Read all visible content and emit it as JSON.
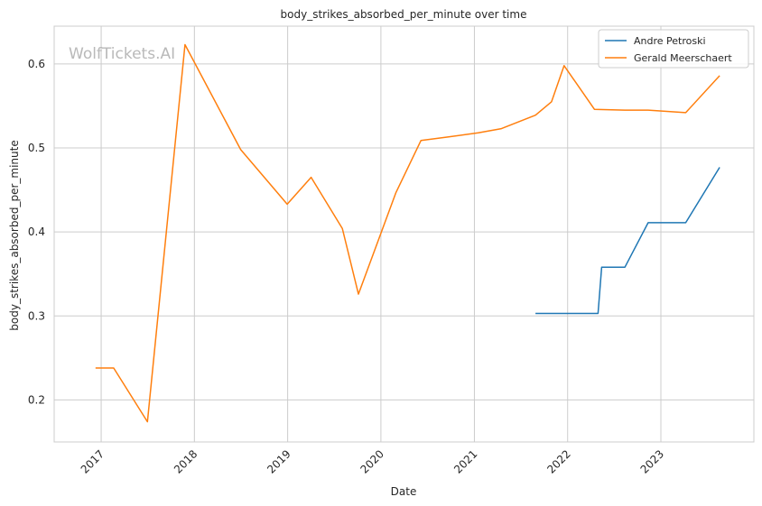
{
  "chart_data": {
    "type": "line",
    "title": "body_strikes_absorbed_per_minute over time",
    "xlabel": "Date",
    "ylabel": "body_strikes_absorbed_per_minute",
    "watermark": "WolfTickets.AI",
    "x_ticks": [
      "2017",
      "2018",
      "2019",
      "2020",
      "2021",
      "2022",
      "2023"
    ],
    "y_ticks": [
      "0.2",
      "0.3",
      "0.4",
      "0.5",
      "0.6"
    ],
    "xlim": [
      "2016-07-01",
      "2023-12-31"
    ],
    "ylim": [
      0.15,
      0.645
    ],
    "grid": true,
    "legend_position": "top-right",
    "series": [
      {
        "name": "Andre Petroski",
        "color": "#1f77b4",
        "points": [
          {
            "x": "2021-08-28",
            "y": 0.303
          },
          {
            "x": "2022-04-30",
            "y": 0.303
          },
          {
            "x": "2022-05-14",
            "y": 0.358
          },
          {
            "x": "2022-08-13",
            "y": 0.358
          },
          {
            "x": "2022-11-12",
            "y": 0.411
          },
          {
            "x": "2023-04-08",
            "y": 0.411
          },
          {
            "x": "2023-08-19",
            "y": 0.477
          }
        ]
      },
      {
        "name": "Gerald Meerschaert",
        "color": "#ff7f0e",
        "points": [
          {
            "x": "2016-12-10",
            "y": 0.238
          },
          {
            "x": "2017-02-19",
            "y": 0.238
          },
          {
            "x": "2017-07-01",
            "y": 0.174
          },
          {
            "x": "2017-11-25",
            "y": 0.623
          },
          {
            "x": "2018-07-01",
            "y": 0.498
          },
          {
            "x": "2018-12-30",
            "y": 0.433
          },
          {
            "x": "2019-04-03",
            "y": 0.465
          },
          {
            "x": "2019-08-03",
            "y": 0.404
          },
          {
            "x": "2019-10-05",
            "y": 0.326
          },
          {
            "x": "2020-02-29",
            "y": 0.447
          },
          {
            "x": "2020-06-06",
            "y": 0.509
          },
          {
            "x": "2020-09-19",
            "y": 0.513
          },
          {
            "x": "2021-01-16",
            "y": 0.518
          },
          {
            "x": "2021-04-17",
            "y": 0.523
          },
          {
            "x": "2021-08-28",
            "y": 0.539
          },
          {
            "x": "2021-10-30",
            "y": 0.555
          },
          {
            "x": "2021-12-18",
            "y": 0.598
          },
          {
            "x": "2022-04-16",
            "y": 0.546
          },
          {
            "x": "2022-08-13",
            "y": 0.545
          },
          {
            "x": "2022-11-12",
            "y": 0.545
          },
          {
            "x": "2023-04-08",
            "y": 0.542
          },
          {
            "x": "2023-08-19",
            "y": 0.586
          }
        ]
      }
    ]
  }
}
